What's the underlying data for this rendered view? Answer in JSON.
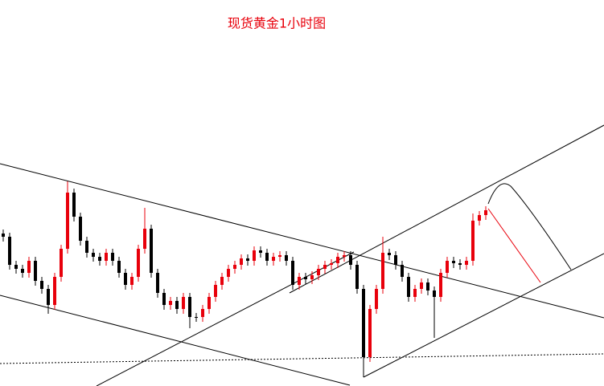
{
  "chart_data": {
    "type": "candlestick",
    "title": "现货黄金1小时图",
    "up_color": "#e8000b",
    "down_color": "#000000",
    "ylim": [
      0,
      481
    ],
    "open": [
      190,
      186,
      151,
      146,
      141,
      156,
      131,
      121,
      101,
      136,
      171,
      241,
      211,
      181,
      166,
      161,
      156,
      166,
      156,
      141,
      126,
      136,
      171,
      196,
      141,
      116,
      101,
      106,
      96,
      111,
      86,
      86,
      96,
      111,
      126,
      136,
      146,
      151,
      159,
      156,
      169,
      166,
      156,
      161,
      163,
      156,
      126,
      136,
      133,
      138,
      146,
      151,
      153,
      161,
      163,
      151,
      121,
      36,
      96,
      121,
      166,
      163,
      151,
      136,
      111,
      121,
      129,
      119,
      111,
      141,
      156,
      153,
      151,
      156,
      206,
      213
    ],
    "high": [
      195,
      191,
      156,
      151,
      161,
      161,
      136,
      126,
      141,
      176,
      255,
      246,
      216,
      186,
      171,
      166,
      171,
      171,
      161,
      146,
      141,
      176,
      222,
      201,
      146,
      121,
      111,
      111,
      116,
      116,
      91,
      101,
      116,
      131,
      141,
      151,
      156,
      164,
      164,
      174,
      174,
      171,
      166,
      168,
      168,
      161,
      141,
      141,
      143,
      151,
      156,
      158,
      166,
      168,
      168,
      156,
      126,
      101,
      126,
      186,
      171,
      168,
      156,
      141,
      126,
      134,
      134,
      124,
      146,
      161,
      161,
      158,
      161,
      215,
      218,
      224
    ],
    "low": [
      180,
      145,
      140,
      135,
      135,
      125,
      115,
      90,
      95,
      130,
      165,
      205,
      175,
      160,
      155,
      150,
      150,
      150,
      135,
      120,
      120,
      130,
      165,
      135,
      110,
      95,
      95,
      90,
      90,
      72,
      80,
      80,
      90,
      105,
      120,
      130,
      140,
      145,
      150,
      150,
      160,
      150,
      150,
      155,
      150,
      120,
      120,
      127,
      127,
      132,
      140,
      145,
      147,
      155,
      145,
      115,
      11,
      30,
      90,
      115,
      157,
      145,
      130,
      105,
      105,
      115,
      113,
      60,
      105,
      135,
      147,
      145,
      145,
      150,
      200,
      207
    ],
    "close": [
      186,
      151,
      146,
      141,
      156,
      131,
      121,
      101,
      136,
      171,
      241,
      211,
      181,
      166,
      161,
      156,
      166,
      156,
      141,
      126,
      136,
      171,
      196,
      141,
      116,
      101,
      106,
      96,
      111,
      86,
      86,
      96,
      111,
      126,
      136,
      146,
      151,
      159,
      156,
      169,
      166,
      156,
      161,
      163,
      156,
      126,
      136,
      133,
      138,
      146,
      151,
      153,
      161,
      163,
      151,
      121,
      36,
      96,
      121,
      166,
      163,
      151,
      136,
      111,
      121,
      129,
      119,
      111,
      141,
      156,
      153,
      151,
      156,
      206,
      213,
      219
    ]
  }
}
